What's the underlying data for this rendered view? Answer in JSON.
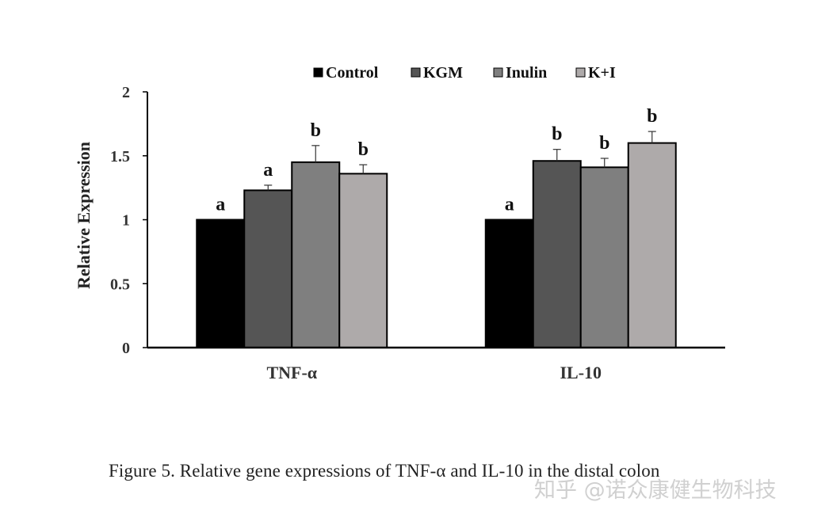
{
  "chart_data": {
    "type": "bar",
    "categories": [
      "TNF-α",
      "IL-10"
    ],
    "series": [
      {
        "name": "Control",
        "values": [
          1.0,
          1.0
        ],
        "errors": [
          0.0,
          0.0
        ],
        "letters": [
          "a",
          "a"
        ],
        "color": "#000000"
      },
      {
        "name": "KGM",
        "values": [
          1.23,
          1.46
        ],
        "errors": [
          0.04,
          0.09
        ],
        "letters": [
          "a",
          "b"
        ],
        "color": "#555555"
      },
      {
        "name": "Inulin",
        "values": [
          1.45,
          1.41
        ],
        "errors": [
          0.13,
          0.07
        ],
        "letters": [
          "b",
          "b"
        ],
        "color": "#7f7f7f"
      },
      {
        "name": "K+I",
        "values": [
          1.36,
          1.6
        ],
        "errors": [
          0.07,
          0.09
        ],
        "letters": [
          "b",
          "b"
        ],
        "color": "#aeaaaa"
      }
    ],
    "ylabel": "Relative Expression",
    "xlabel": "",
    "ylim": [
      0,
      2
    ],
    "yticks": [
      "0",
      "0.5",
      "1",
      "1.5",
      "2"
    ],
    "grid": false,
    "legend_position": "top"
  },
  "caption": "Figure 5. Relative gene expressions of TNF-α and IL-10 in the distal colon",
  "watermark": "知乎 @诺众康健生物科技"
}
